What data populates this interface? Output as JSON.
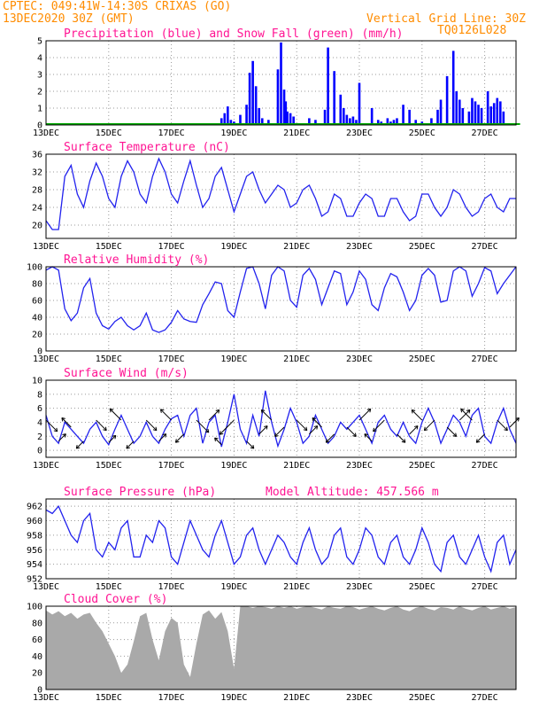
{
  "header": {
    "line1": "CPTEC:   049:41W-14:30S   CRIXAS (GO)",
    "line2": "13DEC2020 30Z (GMT)",
    "grid_note": "Vertical Grid Line: 30Z",
    "run_code": "TQ0126L028"
  },
  "colors": {
    "header": "#ff8c00",
    "panel_title": "#ff1493",
    "precip": "#0000ff",
    "snow": "#00aa00",
    "line": "#2222ee",
    "cloud": "#a9a9a9",
    "arrow": "#000000"
  },
  "chart_data": [
    {
      "type": "bar",
      "title": "Precipitation (blue) and Snow Fall (green) (mm/h)",
      "x_ticks": [
        "13DEC",
        "15DEC",
        "17DEC",
        "19DEC",
        "21DEC",
        "23DEC",
        "25DEC",
        "27DEC"
      ],
      "xlim": [
        0,
        15
      ],
      "ylim": [
        0,
        5
      ],
      "y_ticks": [
        "0",
        "1",
        "2",
        "3",
        "4",
        "5"
      ],
      "grid": true,
      "series": [
        {
          "name": "Precipitation",
          "x": [
            5.6,
            5.7,
            5.8,
            5.9,
            6.0,
            6.2,
            6.4,
            6.5,
            6.6,
            6.7,
            6.8,
            6.9,
            7.1,
            7.4,
            7.5,
            7.6,
            7.65,
            7.7,
            7.8,
            7.9,
            8.4,
            8.6,
            8.9,
            9.0,
            9.2,
            9.4,
            9.5,
            9.6,
            9.7,
            9.8,
            9.9,
            10.0,
            10.4,
            10.6,
            10.7,
            10.9,
            11.0,
            11.1,
            11.2,
            11.4,
            11.6,
            11.8,
            12.0,
            12.3,
            12.5,
            12.6,
            12.8,
            13.0,
            13.1,
            13.2,
            13.3,
            13.5,
            13.6,
            13.7,
            13.8,
            13.9,
            14.1,
            14.2,
            14.3,
            14.4,
            14.5,
            14.6
          ],
          "values": [
            0.4,
            0.7,
            1.1,
            0.3,
            0.2,
            0.6,
            1.2,
            3.1,
            3.8,
            2.3,
            1.0,
            0.4,
            0.3,
            3.3,
            4.9,
            2.1,
            1.4,
            0.8,
            0.7,
            0.5,
            0.4,
            0.3,
            0.9,
            4.6,
            3.2,
            1.8,
            1.0,
            0.6,
            0.4,
            0.5,
            0.3,
            2.5,
            1.0,
            0.3,
            0.2,
            0.4,
            0.2,
            0.3,
            0.4,
            1.2,
            0.9,
            0.3,
            0.2,
            0.4,
            0.9,
            1.5,
            2.9,
            4.4,
            2.0,
            1.5,
            1.0,
            0.8,
            1.6,
            1.4,
            1.2,
            1.0,
            2.0,
            1.1,
            1.3,
            1.6,
            1.4,
            0.8
          ]
        },
        {
          "name": "Snow Fall",
          "x": [
            0.0,
            2.0,
            4.0,
            6.0,
            8.0,
            10.0,
            12.0,
            14.0
          ],
          "values": [
            0,
            0,
            0,
            0,
            0,
            0,
            0,
            0
          ]
        }
      ]
    },
    {
      "type": "line",
      "title": "Surface Temperature (nC)",
      "x_ticks": [
        "13DEC",
        "15DEC",
        "17DEC",
        "19DEC",
        "21DEC",
        "23DEC",
        "25DEC",
        "27DEC"
      ],
      "xlim": [
        0,
        15
      ],
      "ylim": [
        17,
        36
      ],
      "y_ticks": [
        "20",
        "24",
        "28",
        "32",
        "36"
      ],
      "grid": true,
      "x": [
        0.0,
        0.2,
        0.4,
        0.6,
        0.8,
        1.0,
        1.2,
        1.4,
        1.6,
        1.8,
        2.0,
        2.2,
        2.4,
        2.6,
        2.8,
        3.0,
        3.2,
        3.4,
        3.6,
        3.8,
        4.0,
        4.2,
        4.4,
        4.6,
        4.8,
        5.0,
        5.2,
        5.4,
        5.6,
        5.8,
        6.0,
        6.2,
        6.4,
        6.6,
        6.8,
        7.0,
        7.2,
        7.4,
        7.6,
        7.8,
        8.0,
        8.2,
        8.4,
        8.6,
        8.8,
        9.0,
        9.2,
        9.4,
        9.6,
        9.8,
        10.0,
        10.2,
        10.4,
        10.6,
        10.8,
        11.0,
        11.2,
        11.4,
        11.6,
        11.8,
        12.0,
        12.2,
        12.4,
        12.6,
        12.8,
        13.0,
        13.2,
        13.4,
        13.6,
        13.8,
        14.0,
        14.2,
        14.4,
        14.6,
        14.8,
        15.0
      ],
      "values": [
        21,
        19,
        19,
        31,
        33.5,
        27,
        24,
        30,
        34,
        31,
        26,
        24,
        31,
        34.5,
        32,
        27,
        25,
        31,
        35,
        32,
        27,
        25,
        30,
        34.5,
        29,
        24,
        26,
        31,
        33,
        28,
        23,
        27,
        31,
        32,
        28,
        25,
        27,
        29,
        28,
        24,
        25,
        28,
        29,
        26,
        22,
        23,
        27,
        26,
        22,
        22,
        25,
        27,
        26,
        22,
        22,
        26,
        26,
        23,
        21,
        22,
        27,
        27,
        24,
        22,
        24,
        28,
        27,
        24,
        22,
        23,
        26,
        27,
        24,
        23,
        26,
        26
      ]
    },
    {
      "type": "line",
      "title": "Relative Humidity (%)",
      "x_ticks": [
        "13DEC",
        "15DEC",
        "17DEC",
        "19DEC",
        "21DEC",
        "23DEC",
        "25DEC",
        "27DEC"
      ],
      "xlim": [
        0,
        15
      ],
      "ylim": [
        0,
        100
      ],
      "y_ticks": [
        "0",
        "20",
        "40",
        "60",
        "80",
        "100"
      ],
      "grid": true,
      "x": [
        0.0,
        0.2,
        0.4,
        0.6,
        0.8,
        1.0,
        1.2,
        1.4,
        1.6,
        1.8,
        2.0,
        2.2,
        2.4,
        2.6,
        2.8,
        3.0,
        3.2,
        3.4,
        3.6,
        3.8,
        4.0,
        4.2,
        4.4,
        4.6,
        4.8,
        5.0,
        5.2,
        5.4,
        5.6,
        5.8,
        6.0,
        6.2,
        6.4,
        6.6,
        6.8,
        7.0,
        7.2,
        7.4,
        7.6,
        7.8,
        8.0,
        8.2,
        8.4,
        8.6,
        8.8,
        9.0,
        9.2,
        9.4,
        9.6,
        9.8,
        10.0,
        10.2,
        10.4,
        10.6,
        10.8,
        11.0,
        11.2,
        11.4,
        11.6,
        11.8,
        12.0,
        12.2,
        12.4,
        12.6,
        12.8,
        13.0,
        13.2,
        13.4,
        13.6,
        13.8,
        14.0,
        14.2,
        14.4,
        14.6,
        14.8,
        15.0
      ],
      "values": [
        96,
        100,
        96,
        50,
        36,
        45,
        75,
        86,
        45,
        30,
        26,
        35,
        40,
        30,
        25,
        30,
        45,
        25,
        22,
        25,
        34,
        48,
        38,
        35,
        34,
        55,
        68,
        82,
        80,
        48,
        40,
        70,
        98,
        100,
        80,
        50,
        90,
        100,
        95,
        60,
        52,
        90,
        98,
        85,
        55,
        75,
        95,
        92,
        55,
        70,
        95,
        85,
        55,
        48,
        75,
        92,
        88,
        70,
        48,
        60,
        90,
        98,
        90,
        58,
        60,
        95,
        100,
        95,
        65,
        80,
        99,
        95,
        68,
        80,
        90,
        100
      ]
    },
    {
      "type": "line",
      "title": "Surface Wind (m/s)",
      "x_ticks": [
        "13DEC",
        "15DEC",
        "17DEC",
        "19DEC",
        "21DEC",
        "23DEC",
        "25DEC",
        "27DEC"
      ],
      "xlim": [
        0,
        15
      ],
      "ylim": [
        -1,
        10
      ],
      "y_ticks": [
        "0",
        "2",
        "4",
        "6",
        "8",
        "10"
      ],
      "grid": true,
      "x": [
        0.0,
        0.2,
        0.4,
        0.6,
        0.8,
        1.0,
        1.2,
        1.4,
        1.6,
        1.8,
        2.0,
        2.2,
        2.4,
        2.6,
        2.8,
        3.0,
        3.2,
        3.4,
        3.6,
        3.8,
        4.0,
        4.2,
        4.4,
        4.6,
        4.8,
        5.0,
        5.2,
        5.4,
        5.6,
        5.8,
        6.0,
        6.2,
        6.4,
        6.6,
        6.8,
        7.0,
        7.2,
        7.4,
        7.6,
        7.8,
        8.0,
        8.2,
        8.4,
        8.6,
        8.8,
        9.0,
        9.2,
        9.4,
        9.6,
        9.8,
        10.0,
        10.2,
        10.4,
        10.6,
        10.8,
        11.0,
        11.2,
        11.4,
        11.6,
        11.8,
        12.0,
        12.2,
        12.4,
        12.6,
        12.8,
        13.0,
        13.2,
        13.4,
        13.6,
        13.8,
        14.0,
        14.2,
        14.4,
        14.6,
        14.8,
        15.0
      ],
      "values": [
        5,
        2,
        1,
        4,
        3,
        2,
        1,
        3,
        4,
        2,
        0.8,
        3,
        5,
        3,
        1,
        2,
        4,
        2,
        1,
        3,
        4.5,
        5,
        2,
        5,
        6,
        1,
        4,
        5,
        0.5,
        4,
        8,
        3,
        1,
        5,
        2,
        8.5,
        4,
        0.6,
        3,
        6,
        4,
        1,
        2,
        5,
        3,
        1,
        2,
        4,
        3,
        4,
        5,
        3,
        1,
        4,
        5,
        3,
        2,
        4,
        2,
        1,
        4,
        6,
        4,
        1,
        3,
        5,
        4,
        2,
        5,
        6,
        2,
        1,
        4,
        6,
        3,
        1
      ],
      "arrow_direction_deg": [
        315,
        0,
        45,
        90,
        135,
        180,
        225,
        270,
        315,
        0,
        45,
        90,
        135,
        180,
        225,
        270,
        315,
        0,
        45,
        90,
        135,
        180,
        225,
        270,
        315,
        0,
        45,
        90,
        135,
        180,
        225,
        270,
        315,
        0,
        45,
        90,
        135,
        180,
        225,
        270,
        315,
        0,
        45,
        90,
        135,
        180,
        225,
        270,
        315,
        0,
        45,
        90,
        135,
        180,
        225,
        270,
        315,
        0,
        45,
        90,
        135,
        180,
        225,
        270,
        315,
        0,
        45,
        90,
        135,
        180,
        225,
        270,
        315,
        0,
        45,
        90
      ]
    },
    {
      "type": "line",
      "title": "Surface Pressure (hPa)",
      "annotation": "Model Altitude: 457.566  m",
      "x_ticks": [
        "13DEC",
        "15DEC",
        "17DEC",
        "19DEC",
        "21DEC",
        "23DEC",
        "25DEC",
        "27DEC"
      ],
      "xlim": [
        0,
        15
      ],
      "ylim": [
        952,
        963
      ],
      "y_ticks": [
        "952",
        "954",
        "956",
        "958",
        "960",
        "962"
      ],
      "grid": true,
      "x": [
        0.0,
        0.2,
        0.4,
        0.6,
        0.8,
        1.0,
        1.2,
        1.4,
        1.6,
        1.8,
        2.0,
        2.2,
        2.4,
        2.6,
        2.8,
        3.0,
        3.2,
        3.4,
        3.6,
        3.8,
        4.0,
        4.2,
        4.4,
        4.6,
        4.8,
        5.0,
        5.2,
        5.4,
        5.6,
        5.8,
        6.0,
        6.2,
        6.4,
        6.6,
        6.8,
        7.0,
        7.2,
        7.4,
        7.6,
        7.8,
        8.0,
        8.2,
        8.4,
        8.6,
        8.8,
        9.0,
        9.2,
        9.4,
        9.6,
        9.8,
        10.0,
        10.2,
        10.4,
        10.6,
        10.8,
        11.0,
        11.2,
        11.4,
        11.6,
        11.8,
        12.0,
        12.2,
        12.4,
        12.6,
        12.8,
        13.0,
        13.2,
        13.4,
        13.6,
        13.8,
        14.0,
        14.2,
        14.4,
        14.6,
        14.8,
        15.0
      ],
      "values": [
        961.5,
        961,
        962,
        960,
        958,
        957,
        960,
        961,
        956,
        955,
        957,
        956,
        959,
        960,
        955,
        955,
        958,
        957,
        960,
        959,
        955,
        954,
        957,
        960,
        958,
        956,
        955,
        958,
        960,
        957,
        954,
        955,
        958,
        959,
        956,
        954,
        956,
        958,
        957,
        955,
        954,
        957,
        959,
        956,
        954,
        955,
        958,
        959,
        955,
        954,
        956,
        959,
        958,
        955,
        954,
        957,
        958,
        955,
        954,
        956,
        959,
        957,
        954,
        953,
        957,
        958,
        955,
        954,
        956,
        958,
        955,
        953,
        957,
        958,
        954,
        956
      ]
    },
    {
      "type": "area",
      "title": "Cloud Cover (%)",
      "x_ticks": [
        "13DEC",
        "15DEC",
        "17DEC",
        "19DEC",
        "21DEC",
        "23DEC",
        "25DEC",
        "27DEC"
      ],
      "xlim": [
        0,
        15
      ],
      "ylim": [
        0,
        100
      ],
      "y_ticks": [
        "0",
        "20",
        "40",
        "60",
        "80",
        "100"
      ],
      "grid": true,
      "x": [
        0.0,
        0.2,
        0.4,
        0.6,
        0.8,
        1.0,
        1.2,
        1.4,
        1.6,
        1.8,
        2.0,
        2.2,
        2.4,
        2.6,
        2.8,
        3.0,
        3.2,
        3.4,
        3.6,
        3.8,
        4.0,
        4.2,
        4.4,
        4.6,
        4.8,
        5.0,
        5.2,
        5.4,
        5.6,
        5.8,
        6.0,
        6.2,
        6.4,
        6.6,
        6.8,
        7.0,
        7.2,
        7.4,
        7.6,
        7.8,
        8.0,
        8.2,
        8.4,
        8.6,
        8.8,
        9.0,
        9.2,
        9.4,
        9.6,
        9.8,
        10.0,
        10.2,
        10.4,
        10.6,
        10.8,
        11.0,
        11.2,
        11.4,
        11.6,
        11.8,
        12.0,
        12.2,
        12.4,
        12.6,
        12.8,
        13.0,
        13.2,
        13.4,
        13.6,
        13.8,
        14.0,
        14.2,
        14.4,
        14.6,
        14.8,
        15.0
      ],
      "values": [
        95,
        90,
        94,
        88,
        92,
        85,
        90,
        92,
        80,
        70,
        55,
        40,
        20,
        30,
        58,
        88,
        92,
        60,
        35,
        70,
        86,
        80,
        30,
        15,
        55,
        90,
        95,
        85,
        93,
        70,
        25,
        100,
        100,
        98,
        100,
        99,
        97,
        100,
        98,
        100,
        97,
        99,
        100,
        98,
        96,
        100,
        98,
        97,
        100,
        99,
        96,
        98,
        100,
        97,
        95,
        98,
        100,
        96,
        94,
        98,
        100,
        97,
        95,
        99,
        98,
        96,
        100,
        97,
        95,
        98,
        100,
        96,
        98,
        100,
        97,
        99
      ]
    }
  ]
}
